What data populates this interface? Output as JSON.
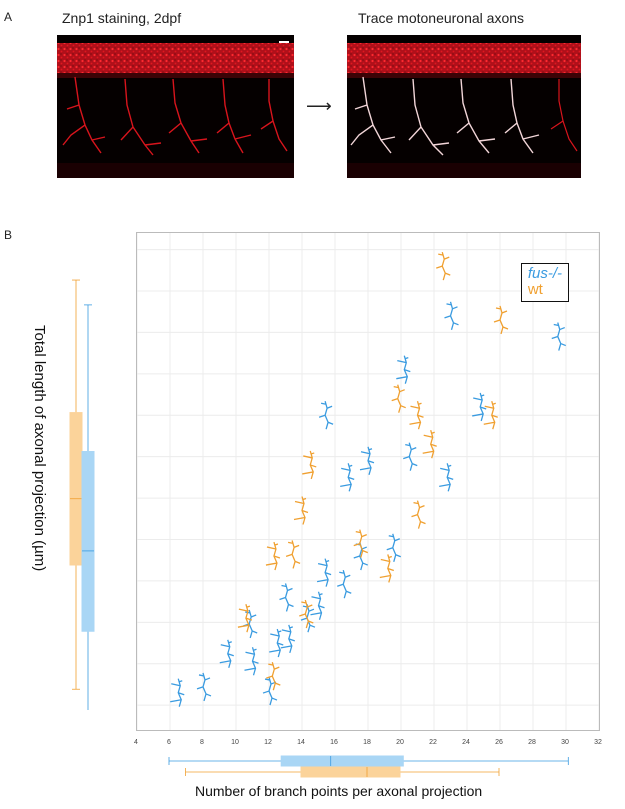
{
  "panels": {
    "a_letter": "A",
    "b_letter": "B"
  },
  "panel_a": {
    "left_title": "Znp1 staining, 2dpf",
    "right_title": "Trace motoneuronal axons",
    "arrow": "⟶"
  },
  "colors": {
    "fus": "#3a9be0",
    "wt": "#f0a030",
    "fus_box": "#a9d6f5",
    "wt_box": "#fbd39a",
    "stain": "#d8141c",
    "trace": "#f2d5d8"
  },
  "chart_data": {
    "type": "scatter",
    "xlabel": "Number of branch points per axonal projection",
    "ylabel": "Total length of axonal projection (µm)",
    "xlim": [
      4,
      32
    ],
    "ylim": [
      320,
      920
    ],
    "xticks": [
      4,
      6,
      8,
      10,
      12,
      14,
      16,
      18,
      20,
      22,
      24,
      26,
      28,
      30,
      32
    ],
    "yticks": [
      350,
      400,
      450,
      500,
      550,
      600,
      650,
      700,
      750,
      800,
      850,
      900
    ],
    "grid": true,
    "legend_position": "top-right",
    "series": [
      {
        "name": "fus-/-",
        "points": [
          [
            6.5,
            365
          ],
          [
            8,
            372
          ],
          [
            9.5,
            412
          ],
          [
            10.8,
            448
          ],
          [
            11,
            403
          ],
          [
            12,
            367
          ],
          [
            12.5,
            425
          ],
          [
            13,
            480
          ],
          [
            13.2,
            430
          ],
          [
            14.3,
            455
          ],
          [
            15,
            470
          ],
          [
            15.4,
            700
          ],
          [
            15.4,
            510
          ],
          [
            16.5,
            496
          ],
          [
            16.8,
            625
          ],
          [
            17.5,
            530
          ],
          [
            18,
            645
          ],
          [
            19.5,
            540
          ],
          [
            20.2,
            755
          ],
          [
            20.5,
            650
          ],
          [
            22.8,
            625
          ],
          [
            23,
            820
          ],
          [
            24.8,
            710
          ],
          [
            29.5,
            795
          ]
        ],
        "box": {
          "min": 6,
          "q1": 12.8,
          "median": 15.8,
          "q3": 20.2,
          "max": 30.2
        }
      },
      {
        "name": "wt",
        "points": [
          [
            10.6,
            455
          ],
          [
            12.2,
            385
          ],
          [
            12.3,
            530
          ],
          [
            13.4,
            532
          ],
          [
            14,
            585
          ],
          [
            14.2,
            460
          ],
          [
            14.5,
            640
          ],
          [
            17.5,
            545
          ],
          [
            19.2,
            515
          ],
          [
            19.8,
            720
          ],
          [
            21,
            700
          ],
          [
            21,
            580
          ],
          [
            21.8,
            665
          ],
          [
            22.5,
            880
          ],
          [
            25.5,
            700
          ],
          [
            26,
            815
          ]
        ],
        "box": {
          "min": 7,
          "q1": 14.0,
          "median": 18.0,
          "q3": 20.0,
          "max": 26.0
        }
      }
    ],
    "y_boxes": {
      "fus-/-": {
        "min": 340,
        "q1": 438,
        "median": 535,
        "q3": 655,
        "max": 832
      },
      "wt": {
        "min": 368,
        "q1": 518,
        "median": 598,
        "q3": 702,
        "max": 862
      }
    }
  }
}
